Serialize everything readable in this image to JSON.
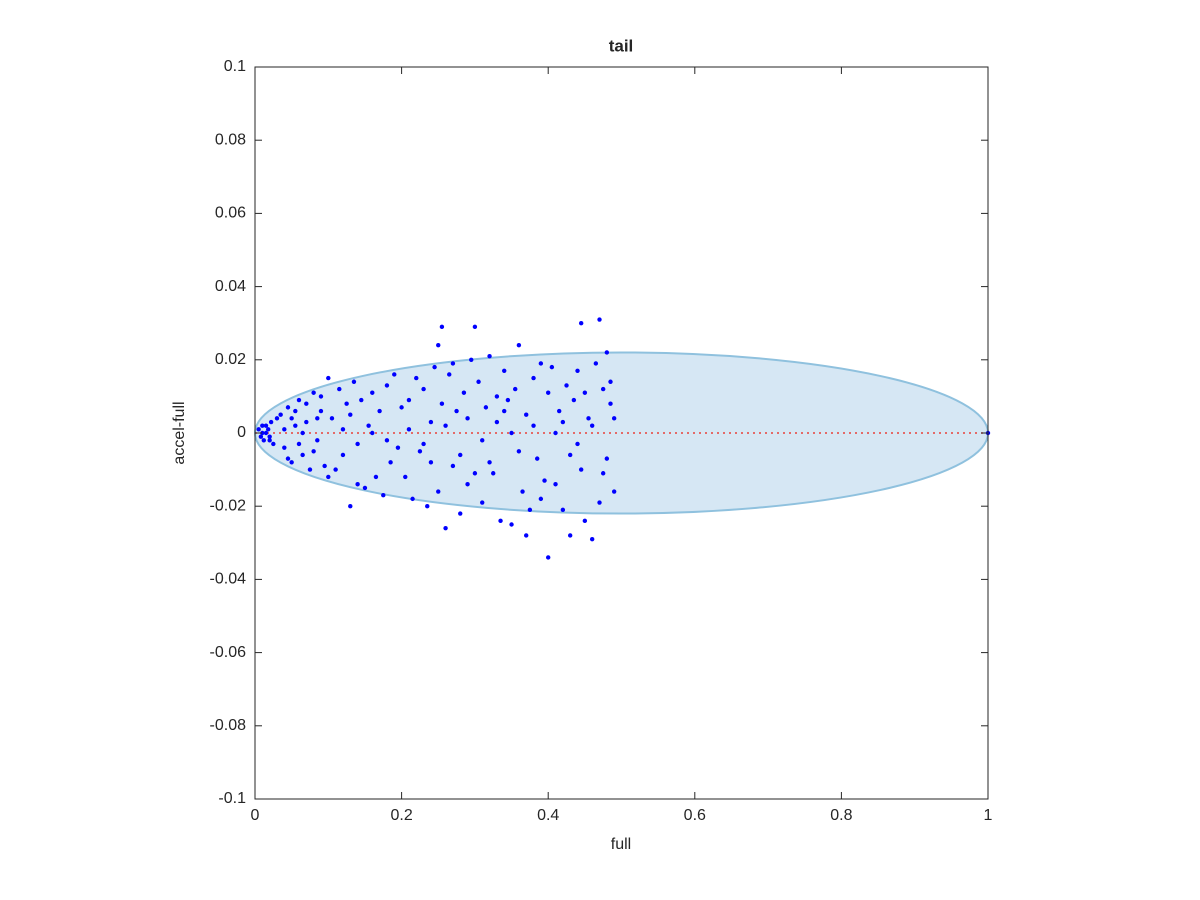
{
  "chart_data": {
    "type": "scatter",
    "title": "tail",
    "xlabel": "full",
    "ylabel": "accel-full",
    "xlim": [
      0,
      1
    ],
    "ylim": [
      -0.1,
      0.1
    ],
    "xticks": [
      0,
      0.2,
      0.4,
      0.6,
      0.8,
      1
    ],
    "yticks": [
      -0.1,
      -0.08,
      -0.06,
      -0.04,
      -0.02,
      0,
      0.02,
      0.04,
      0.06,
      0.08,
      0.1
    ],
    "ellipse": {
      "center": [
        0.5,
        0
      ],
      "radii": [
        0.5,
        0.022
      ],
      "fill": "#d6e7f4",
      "stroke": "#8fc1de"
    },
    "reference_line": {
      "x": [
        0,
        1
      ],
      "y": [
        0,
        0
      ],
      "color": "#e8403a"
    },
    "series": [
      {
        "color": "#0000ff",
        "x": [
          0.005,
          0.008,
          0.01,
          0.012,
          0.015,
          0.018,
          0.02,
          0.022,
          0.025,
          0.01,
          0.015,
          0.02,
          0.03,
          0.035,
          0.04,
          0.045,
          0.05,
          0.055,
          0.06,
          0.065,
          0.07,
          0.075,
          0.08,
          0.085,
          0.09,
          0.095,
          0.04,
          0.05,
          0.06,
          0.07,
          0.08,
          0.09,
          0.1,
          0.045,
          0.065,
          0.085,
          0.1,
          0.055,
          0.105,
          0.11,
          0.115,
          0.12,
          0.125,
          0.13,
          0.135,
          0.14,
          0.145,
          0.15,
          0.155,
          0.16,
          0.165,
          0.17,
          0.175,
          0.18,
          0.185,
          0.19,
          0.195,
          0.2,
          0.12,
          0.14,
          0.16,
          0.18,
          0.13,
          0.205,
          0.21,
          0.215,
          0.22,
          0.225,
          0.23,
          0.235,
          0.24,
          0.245,
          0.25,
          0.255,
          0.26,
          0.265,
          0.27,
          0.275,
          0.28,
          0.285,
          0.29,
          0.295,
          0.3,
          0.21,
          0.23,
          0.25,
          0.255,
          0.26,
          0.27,
          0.28,
          0.29,
          0.3,
          0.24,
          0.305,
          0.31,
          0.315,
          0.32,
          0.325,
          0.33,
          0.335,
          0.34,
          0.345,
          0.35,
          0.355,
          0.36,
          0.365,
          0.37,
          0.375,
          0.38,
          0.385,
          0.39,
          0.395,
          0.4,
          0.31,
          0.33,
          0.35,
          0.36,
          0.37,
          0.38,
          0.39,
          0.32,
          0.34,
          0.4,
          0.405,
          0.41,
          0.415,
          0.42,
          0.425,
          0.43,
          0.435,
          0.44,
          0.445,
          0.45,
          0.455,
          0.46,
          0.465,
          0.47,
          0.475,
          0.48,
          0.485,
          0.49,
          0.41,
          0.42,
          0.43,
          0.44,
          0.45,
          0.46,
          0.47,
          0.48,
          0.485,
          0.49,
          0.445,
          0.475,
          1
        ],
        "values": [
          0.001,
          -0.001,
          0.002,
          -0.002,
          0.0,
          0.001,
          -0.001,
          0.003,
          -0.003,
          0.0,
          0.002,
          -0.002,
          0.004,
          0.005,
          -0.004,
          0.007,
          -0.008,
          0.002,
          0.009,
          -0.006,
          0.003,
          -0.01,
          0.011,
          -0.002,
          0.006,
          -0.009,
          0.001,
          0.004,
          -0.003,
          0.008,
          -0.005,
          0.01,
          0.015,
          -0.007,
          0.0,
          0.004,
          -0.012,
          0.006,
          0.004,
          -0.01,
          0.012,
          -0.006,
          0.008,
          -0.02,
          0.014,
          -0.003,
          0.009,
          -0.015,
          0.002,
          0.011,
          -0.012,
          0.006,
          -0.017,
          0.013,
          -0.008,
          0.016,
          -0.004,
          0.007,
          0.001,
          -0.014,
          0.0,
          -0.002,
          0.005,
          -0.012,
          0.009,
          -0.018,
          0.015,
          -0.005,
          0.012,
          -0.02,
          0.003,
          0.018,
          0.024,
          0.029,
          -0.026,
          0.016,
          -0.009,
          0.006,
          -0.022,
          0.011,
          -0.014,
          0.02,
          0.029,
          0.001,
          -0.003,
          -0.016,
          0.008,
          0.002,
          0.019,
          -0.006,
          0.004,
          -0.011,
          -0.008,
          0.014,
          -0.019,
          0.007,
          0.021,
          -0.011,
          0.003,
          -0.024,
          0.017,
          0.009,
          -0.025,
          0.012,
          0.024,
          -0.016,
          0.005,
          -0.021,
          0.015,
          -0.007,
          0.019,
          -0.013,
          -0.034,
          -0.002,
          0.01,
          0.0,
          -0.005,
          -0.028,
          0.002,
          -0.018,
          -0.008,
          0.006,
          0.011,
          0.018,
          -0.014,
          0.006,
          -0.021,
          0.013,
          -0.028,
          0.009,
          0.017,
          0.03,
          -0.024,
          0.004,
          -0.029,
          0.019,
          0.031,
          -0.011,
          0.022,
          0.008,
          -0.016,
          0.0,
          0.003,
          -0.006,
          -0.003,
          0.011,
          0.002,
          -0.019,
          -0.007,
          0.014,
          0.004,
          -0.01,
          0.012,
          0
        ]
      }
    ]
  }
}
